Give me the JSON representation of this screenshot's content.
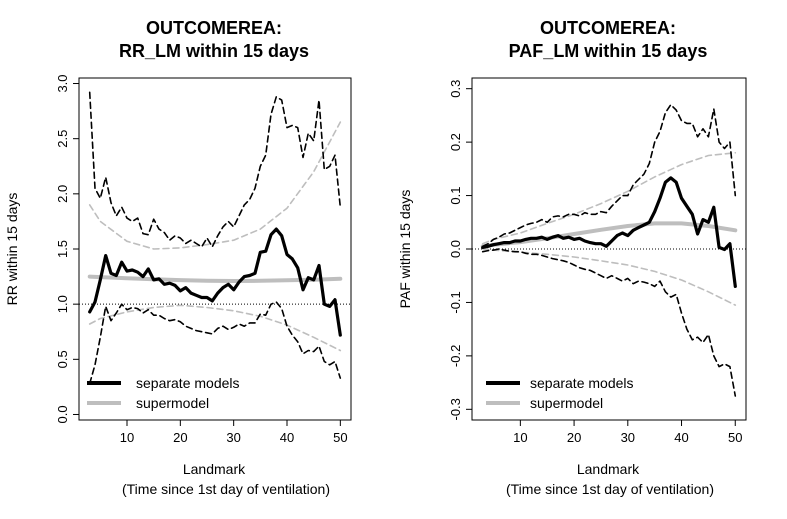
{
  "chart_data": [
    {
      "type": "line",
      "title_line1": "OUTCOMEREA:",
      "title_line2": "RR_LM within 15 days",
      "xlabel_line1": "Landmark",
      "xlabel_line2": "(Time since 1st day of ventilation)",
      "ylabel": "RR within 15 days",
      "xlim": [
        1,
        52
      ],
      "ylim": [
        -0.05,
        3.05
      ],
      "xticks": [
        10,
        20,
        30,
        40,
        50
      ],
      "yticks": [
        0.0,
        0.5,
        1.0,
        1.5,
        2.0,
        2.5,
        3.0
      ],
      "ytick_labels": [
        "0.0",
        "0.5",
        "1.0",
        "1.5",
        "2.0",
        "2.5",
        "3.0"
      ],
      "reference_line": 1.0,
      "legend_position": "bottom-left",
      "legend": [
        "separate models",
        "supermodel"
      ],
      "series": [
        {
          "name": "separate models",
          "role": "estimate",
          "color": "#000000",
          "x": [
            3,
            4,
            5,
            6,
            7,
            8,
            9,
            10,
            11,
            12,
            13,
            14,
            15,
            16,
            17,
            18,
            19,
            20,
            21,
            22,
            23,
            24,
            25,
            26,
            27,
            28,
            29,
            30,
            31,
            32,
            33,
            34,
            35,
            36,
            37,
            38,
            39,
            40,
            41,
            42,
            43,
            44,
            45,
            46,
            47,
            48,
            49,
            50
          ],
          "y": [
            0.93,
            1.02,
            1.22,
            1.44,
            1.28,
            1.26,
            1.38,
            1.3,
            1.31,
            1.29,
            1.25,
            1.32,
            1.22,
            1.23,
            1.18,
            1.19,
            1.17,
            1.12,
            1.15,
            1.1,
            1.08,
            1.06,
            1.06,
            1.03,
            1.1,
            1.15,
            1.18,
            1.13,
            1.2,
            1.25,
            1.26,
            1.28,
            1.47,
            1.48,
            1.63,
            1.68,
            1.62,
            1.45,
            1.41,
            1.33,
            1.13,
            1.24,
            1.22,
            1.35,
            1.0,
            0.98,
            1.04,
            0.72
          ]
        },
        {
          "name": "separate models lower CI",
          "role": "ci",
          "color": "#000000",
          "x": [
            3,
            4,
            5,
            6,
            7,
            8,
            9,
            10,
            11,
            12,
            13,
            14,
            15,
            16,
            17,
            18,
            19,
            20,
            21,
            22,
            23,
            24,
            25,
            26,
            27,
            28,
            29,
            30,
            31,
            32,
            33,
            34,
            35,
            36,
            37,
            38,
            39,
            40,
            41,
            42,
            43,
            44,
            45,
            46,
            47,
            48,
            49,
            50
          ],
          "y": [
            0.28,
            0.45,
            0.7,
            0.98,
            0.85,
            0.92,
            1.0,
            0.95,
            0.97,
            0.96,
            0.92,
            0.95,
            0.9,
            0.9,
            0.87,
            0.85,
            0.86,
            0.84,
            0.8,
            0.78,
            0.76,
            0.75,
            0.74,
            0.73,
            0.78,
            0.8,
            0.77,
            0.79,
            0.82,
            0.8,
            0.83,
            0.83,
            0.91,
            0.9,
            1.0,
            1.02,
            0.96,
            0.8,
            0.72,
            0.66,
            0.55,
            0.58,
            0.57,
            0.62,
            0.48,
            0.45,
            0.48,
            0.33
          ]
        },
        {
          "name": "separate models upper CI",
          "role": "ci",
          "color": "#000000",
          "x": [
            3,
            4,
            5,
            6,
            7,
            8,
            9,
            10,
            11,
            12,
            13,
            14,
            15,
            16,
            17,
            18,
            19,
            20,
            21,
            22,
            23,
            24,
            25,
            26,
            27,
            28,
            29,
            30,
            31,
            32,
            33,
            34,
            35,
            36,
            37,
            38,
            39,
            40,
            41,
            42,
            43,
            44,
            45,
            46,
            47,
            48,
            49,
            50
          ],
          "y": [
            2.92,
            2.05,
            1.96,
            2.15,
            1.92,
            1.8,
            1.88,
            1.78,
            1.75,
            1.78,
            1.64,
            1.63,
            1.77,
            1.68,
            1.65,
            1.58,
            1.62,
            1.6,
            1.55,
            1.58,
            1.55,
            1.52,
            1.6,
            1.52,
            1.62,
            1.7,
            1.75,
            1.7,
            1.8,
            1.9,
            1.95,
            2.05,
            2.25,
            2.35,
            2.72,
            2.88,
            2.85,
            2.6,
            2.62,
            2.6,
            2.33,
            2.55,
            2.48,
            2.85,
            2.22,
            2.25,
            2.35,
            1.88
          ]
        },
        {
          "name": "supermodel",
          "role": "estimate",
          "color": "#bebebe",
          "x": [
            3,
            5,
            10,
            15,
            20,
            25,
            30,
            35,
            40,
            45,
            50
          ],
          "y": [
            1.25,
            1.245,
            1.235,
            1.225,
            1.218,
            1.212,
            1.21,
            1.212,
            1.216,
            1.222,
            1.23
          ]
        },
        {
          "name": "supermodel lower CI",
          "role": "ci",
          "color": "#bebebe",
          "x": [
            3,
            5,
            10,
            15,
            20,
            25,
            30,
            35,
            40,
            45,
            50
          ],
          "y": [
            0.82,
            0.87,
            0.93,
            0.97,
            0.99,
            0.97,
            0.94,
            0.89,
            0.81,
            0.7,
            0.58
          ]
        },
        {
          "name": "supermodel upper CI",
          "role": "ci",
          "color": "#bebebe",
          "x": [
            3,
            5,
            10,
            15,
            20,
            25,
            30,
            35,
            40,
            45,
            50
          ],
          "y": [
            1.9,
            1.75,
            1.57,
            1.5,
            1.51,
            1.54,
            1.58,
            1.68,
            1.87,
            2.2,
            2.65
          ]
        }
      ]
    },
    {
      "type": "line",
      "title_line1": "OUTCOMEREA:",
      "title_line2": "PAF_LM within 15 days",
      "xlabel_line1": "Landmark",
      "xlabel_line2": "(Time since 1st day of ventilation)",
      "ylabel": "PAF within 15 days",
      "xlim": [
        1,
        52
      ],
      "ylim": [
        -0.32,
        0.32
      ],
      "xticks": [
        10,
        20,
        30,
        40,
        50
      ],
      "yticks": [
        -0.3,
        -0.2,
        -0.1,
        0.0,
        0.1,
        0.2,
        0.3
      ],
      "ytick_labels": [
        "-0.3",
        "-0.2",
        "-0.1",
        "0.0",
        "0.1",
        "0.2",
        "0.3"
      ],
      "reference_line": 0.0,
      "legend_position": "bottom-left",
      "legend": [
        "separate models",
        "supermodel"
      ],
      "series": [
        {
          "name": "separate models",
          "role": "estimate",
          "color": "#000000",
          "x": [
            3,
            4,
            5,
            6,
            7,
            8,
            9,
            10,
            11,
            12,
            13,
            14,
            15,
            16,
            17,
            18,
            19,
            20,
            21,
            22,
            23,
            24,
            25,
            26,
            27,
            28,
            29,
            30,
            31,
            32,
            33,
            34,
            35,
            36,
            37,
            38,
            39,
            40,
            41,
            42,
            43,
            44,
            45,
            46,
            47,
            48,
            49,
            50
          ],
          "y": [
            0.003,
            0.005,
            0.008,
            0.01,
            0.012,
            0.012,
            0.015,
            0.015,
            0.018,
            0.02,
            0.02,
            0.022,
            0.018,
            0.022,
            0.025,
            0.02,
            0.022,
            0.018,
            0.02,
            0.015,
            0.012,
            0.01,
            0.01,
            0.005,
            0.015,
            0.025,
            0.03,
            0.025,
            0.035,
            0.04,
            0.045,
            0.05,
            0.07,
            0.095,
            0.125,
            0.133,
            0.125,
            0.095,
            0.08,
            0.065,
            0.028,
            0.055,
            0.05,
            0.078,
            0.003,
            -0.001,
            0.01,
            -0.07
          ]
        },
        {
          "name": "separate models lower CI",
          "role": "ci",
          "color": "#000000",
          "x": [
            3,
            4,
            5,
            6,
            7,
            8,
            9,
            10,
            11,
            12,
            13,
            14,
            15,
            16,
            17,
            18,
            19,
            20,
            21,
            22,
            23,
            24,
            25,
            26,
            27,
            28,
            29,
            30,
            31,
            32,
            33,
            34,
            35,
            36,
            37,
            38,
            39,
            40,
            41,
            42,
            43,
            44,
            45,
            46,
            47,
            48,
            49,
            50
          ],
          "y": [
            -0.005,
            -0.003,
            -0.002,
            0.0,
            -0.002,
            -0.004,
            -0.005,
            -0.005,
            -0.008,
            -0.01,
            -0.01,
            -0.012,
            -0.015,
            -0.018,
            -0.02,
            -0.022,
            -0.025,
            -0.03,
            -0.035,
            -0.038,
            -0.04,
            -0.045,
            -0.05,
            -0.055,
            -0.05,
            -0.055,
            -0.06,
            -0.055,
            -0.065,
            -0.06,
            -0.062,
            -0.065,
            -0.07,
            -0.06,
            -0.08,
            -0.09,
            -0.085,
            -0.12,
            -0.15,
            -0.17,
            -0.165,
            -0.175,
            -0.16,
            -0.2,
            -0.22,
            -0.215,
            -0.22,
            -0.275
          ]
        },
        {
          "name": "separate models upper CI",
          "role": "ci",
          "color": "#000000",
          "x": [
            3,
            4,
            5,
            6,
            7,
            8,
            9,
            10,
            11,
            12,
            13,
            14,
            15,
            16,
            17,
            18,
            19,
            20,
            21,
            22,
            23,
            24,
            25,
            26,
            27,
            28,
            29,
            30,
            31,
            32,
            33,
            34,
            35,
            36,
            37,
            38,
            39,
            40,
            41,
            42,
            43,
            44,
            45,
            46,
            47,
            48,
            49,
            50
          ],
          "y": [
            0.005,
            0.01,
            0.018,
            0.022,
            0.028,
            0.03,
            0.035,
            0.04,
            0.045,
            0.048,
            0.05,
            0.055,
            0.05,
            0.06,
            0.062,
            0.06,
            0.065,
            0.065,
            0.062,
            0.068,
            0.065,
            0.065,
            0.07,
            0.068,
            0.08,
            0.09,
            0.1,
            0.1,
            0.12,
            0.13,
            0.14,
            0.16,
            0.2,
            0.22,
            0.255,
            0.27,
            0.26,
            0.24,
            0.235,
            0.235,
            0.21,
            0.225,
            0.21,
            0.262,
            0.2,
            0.188,
            0.2,
            0.1
          ]
        },
        {
          "name": "supermodel",
          "role": "estimate",
          "color": "#bebebe",
          "x": [
            3,
            5,
            10,
            15,
            20,
            25,
            30,
            35,
            40,
            45,
            50
          ],
          "y": [
            0.005,
            0.008,
            0.013,
            0.02,
            0.028,
            0.036,
            0.043,
            0.048,
            0.048,
            0.043,
            0.035
          ]
        },
        {
          "name": "supermodel lower CI",
          "role": "ci",
          "color": "#bebebe",
          "x": [
            3,
            5,
            10,
            15,
            20,
            25,
            30,
            35,
            40,
            45,
            50
          ],
          "y": [
            0.0,
            -0.002,
            -0.006,
            -0.01,
            -0.015,
            -0.022,
            -0.03,
            -0.042,
            -0.058,
            -0.08,
            -0.105
          ]
        },
        {
          "name": "supermodel upper CI",
          "role": "ci",
          "color": "#bebebe",
          "x": [
            3,
            5,
            10,
            15,
            20,
            25,
            30,
            35,
            40,
            45,
            50
          ],
          "y": [
            0.01,
            0.018,
            0.03,
            0.048,
            0.065,
            0.085,
            0.108,
            0.135,
            0.158,
            0.175,
            0.18
          ]
        }
      ]
    }
  ]
}
